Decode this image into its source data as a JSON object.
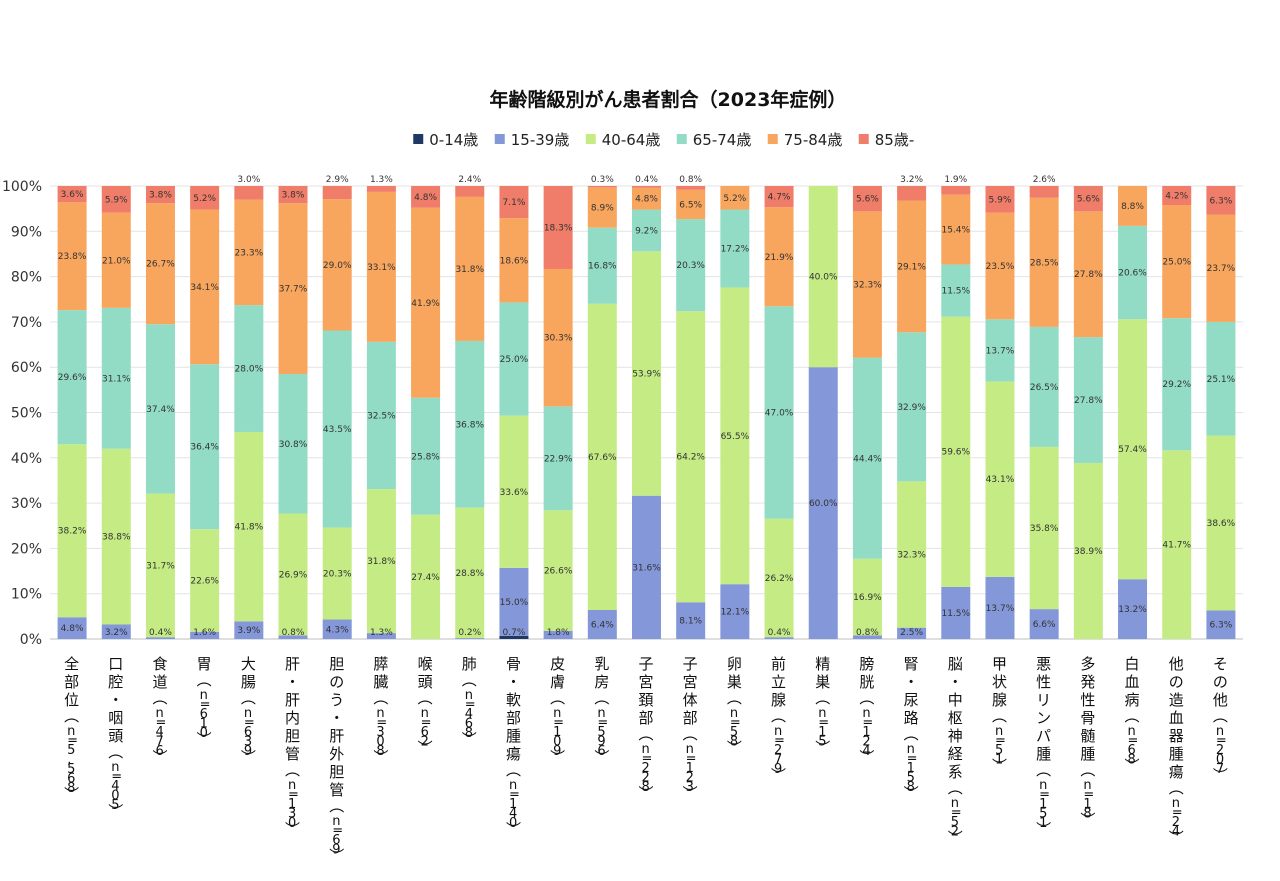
{
  "chart_data": {
    "type": "bar",
    "stacked": "percent",
    "title": "年齢階級別がん患者割合（2023年症例）",
    "legend_position": "top",
    "grid": true,
    "ylim": [
      0,
      100
    ],
    "yticks": [
      "0%",
      "10%",
      "20%",
      "30%",
      "40%",
      "50%",
      "60%",
      "70%",
      "80%",
      "90%",
      "100%"
    ],
    "colors": {
      "0-14歳": "#1f3864",
      "15-39歳": "#8497d8",
      "40-64歳": "#c5eb85",
      "65-74歳": "#92dcc6",
      "75-84歳": "#f8a65e",
      "85歳-": "#f07d6a"
    },
    "categories": [
      "全部位（n=5,568）",
      "口腔・咽頭（n=405）",
      "食道（n=476）",
      "胃（n=610）",
      "大腸（n=639）",
      "肝・肝内胆管（n=130）",
      "胆のう・肝外胆管（n=69）",
      "膵臓（n=308）",
      "喉頭（n=62）",
      "肺（n=468）",
      "骨・軟部腫瘍（n=140）",
      "皮膚（n=109）",
      "乳房（n=596）",
      "子宮頚部（n=228）",
      "子宮体部（n=123）",
      "卵巣（n=58）",
      "前立腺（n=279）",
      "精巣（n=15）",
      "膀胱（n=124）",
      "腎・尿路（n=158）",
      "脳・中枢神経系（n=52）",
      "甲状腺（n=51）",
      "悪性リンパ腫（n=151）",
      "多発性骨髄腫（n=18）",
      "白血病（n=68）",
      "他の造血器腫瘍（n=24）",
      "その他（n=207）"
    ],
    "series": [
      {
        "name": "0-14歳",
        "values": [
          0,
          0,
          0,
          0,
          0,
          0,
          0,
          0,
          0,
          0,
          0.7,
          0,
          0,
          0,
          0,
          0,
          0,
          0,
          0,
          0,
          0,
          0,
          0,
          0,
          0,
          0,
          0
        ],
        "labels": [
          "",
          "",
          "",
          "",
          "",
          "",
          "",
          "",
          "",
          "",
          "0.7%",
          "",
          "",
          "",
          "",
          "",
          "",
          "",
          "",
          "",
          "",
          "",
          "",
          "",
          "",
          "",
          ""
        ]
      },
      {
        "name": "15-39歳",
        "values": [
          4.8,
          3.2,
          0.4,
          1.6,
          3.9,
          0.8,
          4.3,
          1.3,
          0,
          0.2,
          15.0,
          1.8,
          6.4,
          31.6,
          8.1,
          12.1,
          0.4,
          60.0,
          0.8,
          2.5,
          11.5,
          13.7,
          6.6,
          0,
          13.2,
          0,
          6.3
        ],
        "labels": [
          "4.8%",
          "3.2%",
          "0.4%",
          "1.6%",
          "3.9%",
          "0.8%",
          "4.3%",
          "1.3%",
          "",
          "0.2%",
          "15.0%",
          "1.8%",
          "6.4%",
          "31.6%",
          "8.1%",
          "12.1%",
          "0.4%",
          "60.0%",
          "0.8%",
          "2.5%",
          "11.5%",
          "13.7%",
          "6.6%",
          "",
          "13.2%",
          "",
          "6.3%"
        ]
      },
      {
        "name": "40-64歳",
        "values": [
          38.2,
          38.8,
          31.7,
          22.6,
          41.8,
          26.9,
          20.3,
          31.8,
          27.4,
          28.8,
          33.6,
          26.6,
          67.6,
          53.9,
          64.2,
          65.5,
          26.2,
          40.0,
          16.9,
          32.3,
          59.6,
          43.1,
          35.8,
          38.9,
          57.4,
          41.7,
          38.6
        ],
        "labels": [
          "38.2%",
          "38.8%",
          "31.7%",
          "22.6%",
          "41.8%",
          "26.9%",
          "20.3%",
          "31.8%",
          "27.4%",
          "28.8%",
          "33.6%",
          "26.6%",
          "67.6%",
          "53.9%",
          "64.2%",
          "65.5%",
          "26.2%",
          "40.0%",
          "16.9%",
          "32.3%",
          "59.6%",
          "43.1%",
          "35.8%",
          "38.9%",
          "57.4%",
          "41.7%",
          "38.6%"
        ]
      },
      {
        "name": "65-74歳",
        "values": [
          29.6,
          31.1,
          37.4,
          36.4,
          28.0,
          30.8,
          43.5,
          32.5,
          25.8,
          36.8,
          25.0,
          22.9,
          16.8,
          9.2,
          20.3,
          17.2,
          47.0,
          0,
          44.4,
          32.9,
          11.5,
          13.7,
          26.5,
          27.8,
          20.6,
          29.2,
          25.1
        ],
        "labels": [
          "29.6%",
          "31.1%",
          "37.4%",
          "36.4%",
          "28.0%",
          "30.8%",
          "43.5%",
          "32.5%",
          "25.8%",
          "36.8%",
          "25.0%",
          "22.9%",
          "16.8%",
          "9.2%",
          "20.3%",
          "17.2%",
          "47.0%",
          "",
          "44.4%",
          "32.9%",
          "11.5%",
          "13.7%",
          "26.5%",
          "27.8%",
          "20.6%",
          "29.2%",
          "25.1%"
        ]
      },
      {
        "name": "75-84歳",
        "values": [
          23.8,
          21.0,
          26.7,
          34.1,
          23.3,
          37.7,
          29.0,
          33.1,
          41.9,
          31.8,
          18.6,
          30.3,
          8.9,
          4.8,
          6.5,
          5.2,
          21.9,
          0,
          32.3,
          29.1,
          15.4,
          23.5,
          28.5,
          27.8,
          8.8,
          25.0,
          23.7
        ],
        "labels": [
          "23.8%",
          "21.0%",
          "26.7%",
          "34.1%",
          "23.3%",
          "37.7%",
          "29.0%",
          "33.1%",
          "41.9%",
          "31.8%",
          "18.6%",
          "30.3%",
          "8.9%",
          "4.8%",
          "6.5%",
          "5.2%",
          "21.9%",
          "",
          "32.3%",
          "29.1%",
          "15.4%",
          "23.5%",
          "28.5%",
          "27.8%",
          "8.8%",
          "25.0%",
          "23.7%"
        ]
      },
      {
        "name": "85歳-",
        "values": [
          3.6,
          5.9,
          3.8,
          5.2,
          3.0,
          3.8,
          2.9,
          1.3,
          4.8,
          2.4,
          7.1,
          18.3,
          0.3,
          0.4,
          0.8,
          0,
          4.7,
          0,
          5.6,
          3.2,
          1.9,
          5.9,
          2.6,
          5.6,
          0,
          4.2,
          6.3
        ],
        "labels": [
          "3.6%",
          "5.9%",
          "3.8%",
          "5.2%",
          "3.0%",
          "3.8%",
          "2.9%",
          "1.3%",
          "4.8%",
          "2.4%",
          "7.1%",
          "18.3%",
          "0.3%",
          "0.4%",
          "0.8%",
          "",
          "4.7%",
          "",
          "5.6%",
          "3.2%",
          "1.9%",
          "5.9%",
          "2.6%",
          "5.6%",
          "",
          "4.2%",
          "6.3%"
        ]
      }
    ]
  }
}
